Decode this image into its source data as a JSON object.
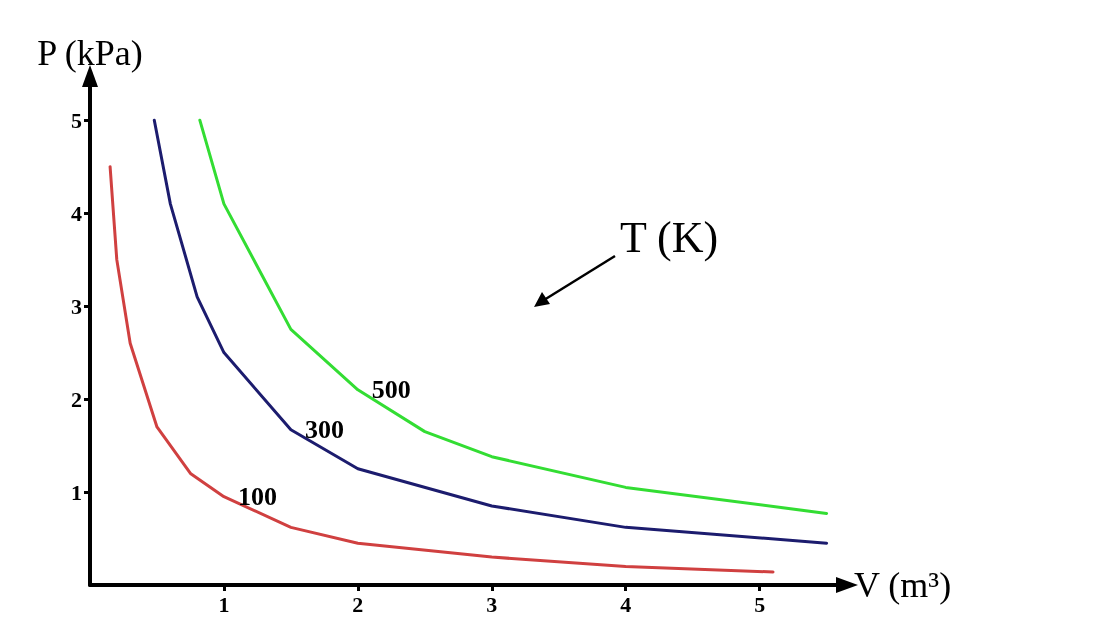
{
  "chart_data": {
    "type": "line",
    "xlabel": "V (m³)",
    "ylabel": "P (kPa)",
    "xlim": [
      0,
      5.6
    ],
    "xticks": [
      1,
      2,
      3,
      4,
      5
    ],
    "ylim": [
      0,
      5.4
    ],
    "yticks": [
      1,
      2,
      3,
      4,
      5
    ],
    "grid": false,
    "marker": "none",
    "line_style": "solid",
    "series": [
      {
        "name": "100",
        "color": "#d04040",
        "x": [
          0.15,
          0.2,
          0.3,
          0.5,
          0.75,
          1,
          1.5,
          2,
          3,
          4,
          5.1
        ],
        "values": [
          4.5,
          3.5,
          2.6,
          1.7,
          1.2,
          0.95,
          0.62,
          0.45,
          0.3,
          0.2,
          0.14
        ]
      },
      {
        "name": "300",
        "color": "#1c1c6e",
        "x": [
          0.48,
          0.6,
          0.8,
          1,
          1.5,
          2,
          3,
          4,
          5.5
        ],
        "values": [
          5,
          4.1,
          3.1,
          2.5,
          1.67,
          1.25,
          0.85,
          0.62,
          0.45
        ]
      },
      {
        "name": "500",
        "color": "#33dd33",
        "x": [
          0.82,
          1,
          1.5,
          2,
          2.5,
          3,
          4,
          5.5
        ],
        "values": [
          5,
          4.1,
          2.75,
          2.1,
          1.65,
          1.38,
          1.05,
          0.77
        ]
      }
    ],
    "annotations": [
      "T (K)"
    ]
  }
}
